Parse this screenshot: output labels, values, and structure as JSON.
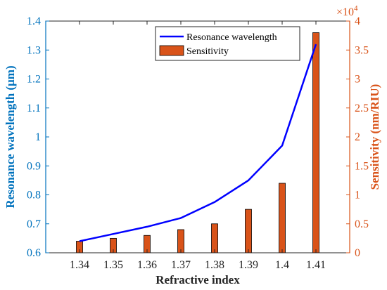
{
  "colors": {
    "left_axis": "#0072BD",
    "right_axis": "#D95319",
    "line": "#0000FF",
    "bar": "#D95319",
    "bar_edge": "#000000"
  },
  "chart_data": {
    "type": "bar+line",
    "xlabel": "Refractive index",
    "ylabel_left": "Resonance wavelength (μm)",
    "ylabel_right": "Sensitivity (nm/RIU)",
    "right_axis_multiplier": "×10",
    "right_axis_exponent": "4",
    "categories": [
      "1.34",
      "1.35",
      "1.36",
      "1.37",
      "1.38",
      "1.39",
      "1.4",
      "1.41"
    ],
    "ylim_left": [
      0.6,
      1.4
    ],
    "yticks_left": [
      "0.6",
      "0.7",
      "0.8",
      "0.9",
      "1",
      "1.1",
      "1.2",
      "1.3",
      "1.4"
    ],
    "ylim_right": [
      0,
      40000
    ],
    "yticks_right": [
      "0",
      "0.5",
      "1",
      "1.5",
      "2",
      "2.5",
      "3",
      "3.5",
      "4"
    ],
    "grid": false,
    "legend_position": "top-center",
    "series": [
      {
        "name": "Resonance wavelength",
        "kind": "line",
        "axis": "left",
        "values": [
          0.64,
          0.665,
          0.69,
          0.72,
          0.775,
          0.85,
          0.97,
          1.32
        ]
      },
      {
        "name": "Sensitivity",
        "kind": "bar",
        "axis": "right",
        "values": [
          2000,
          2500,
          3000,
          4000,
          5000,
          7500,
          12000,
          38000
        ]
      }
    ]
  }
}
